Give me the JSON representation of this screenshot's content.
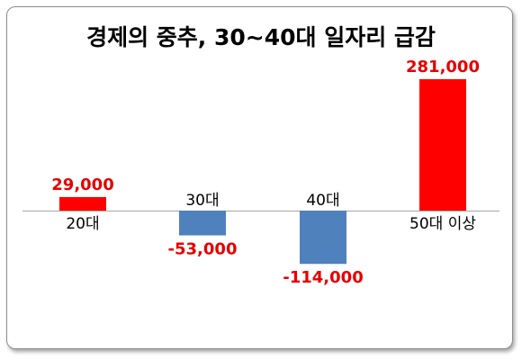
{
  "chart_data": {
    "type": "bar",
    "title": "경제의 중추, 30~40대 일자리 급감",
    "categories": [
      "20대",
      "30대",
      "40대",
      "50대 이상"
    ],
    "values": [
      29000,
      -53000,
      -114000,
      281000
    ],
    "value_labels": [
      "29,000",
      "-53,000",
      "-114,000",
      "281,000"
    ],
    "colors": {
      "positive": "#ff0000",
      "negative": "#4f81bd",
      "label": "#e60000"
    },
    "grid": false,
    "legend": "none"
  }
}
